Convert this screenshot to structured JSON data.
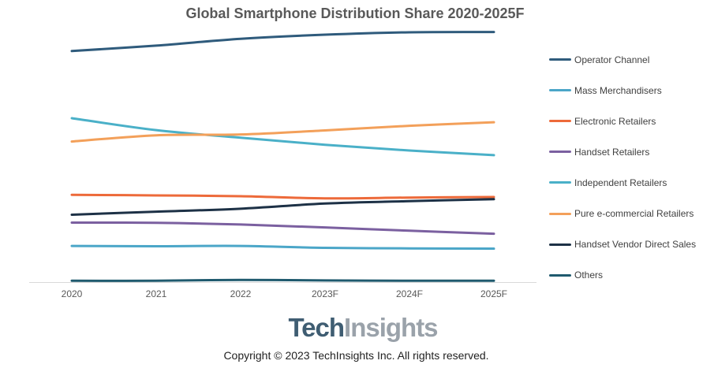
{
  "chart_data": {
    "type": "line",
    "title": "Global Smartphone Distribution Share 2020-2025F",
    "categories": [
      "2020",
      "2021",
      "2022",
      "2023F",
      "2024F",
      "2025F"
    ],
    "xlabel": "",
    "ylabel": "",
    "ylim": [
      0,
      100
    ],
    "y_axis_labels_shown": false,
    "grid": false,
    "legend_position": "right",
    "series": [
      {
        "name": "Operator Channel",
        "color": "#2f5b7c",
        "values": [
          85,
          87,
          89.5,
          91,
          91.9,
          92
        ]
      },
      {
        "name": "Mass Merchandisers",
        "color": "#4ba6c8",
        "values": [
          13.3,
          13.2,
          13.3,
          12.6,
          12.4,
          12.3
        ]
      },
      {
        "name": "Electronic Retailers",
        "color": "#ed6a3a",
        "values": [
          32.1,
          31.9,
          31.6,
          30.8,
          31.1,
          31.3
        ]
      },
      {
        "name": "Handset Retailers",
        "color": "#7b60a0",
        "values": [
          21.9,
          21.8,
          21.2,
          20.1,
          18.9,
          17.8
        ]
      },
      {
        "name": "Independent Retailers",
        "color": "#4ab0c8",
        "values": [
          60.3,
          55.9,
          53.1,
          50.5,
          48.4,
          46.7
        ]
      },
      {
        "name": "Pure e-commercial Retailers",
        "color": "#f3a05a",
        "values": [
          51.7,
          54,
          54.3,
          55.8,
          57.5,
          58.8
        ]
      },
      {
        "name": "Handset Vendor Direct Sales",
        "color": "#1d3146",
        "values": [
          24.8,
          25.9,
          27,
          28.9,
          29.8,
          30.5
        ]
      },
      {
        "name": "Others",
        "color": "#1f5a6e",
        "values": [
          0.5,
          0.5,
          0.8,
          0.6,
          0.5,
          0.5
        ]
      }
    ]
  },
  "branding": {
    "logo_part1": "Tech",
    "logo_part2": "Insights",
    "copyright": "Copyright © 2023 TechInsights Inc.  All rights reserved."
  }
}
